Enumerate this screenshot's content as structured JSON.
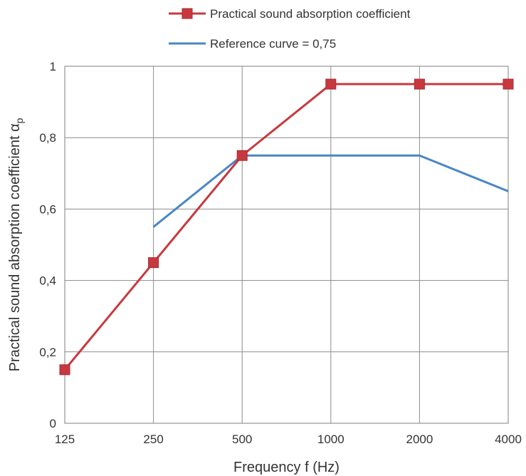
{
  "chart_data": {
    "type": "line",
    "categories": [
      "125",
      "250",
      "500",
      "1000",
      "2000",
      "4000"
    ],
    "y_tick_labels": [
      "0",
      "0,2",
      "0,4",
      "0,6",
      "0,8",
      "1"
    ],
    "y_ticks": [
      0,
      0.2,
      0.4,
      0.6,
      0.8,
      1
    ],
    "ylim": [
      0,
      1
    ],
    "grid": true,
    "legend_position": "top",
    "xlabel": "Frequency  f (Hz)",
    "ylabel": "Practical sound absorption coefficient  α",
    "ylabel_subscript": "p",
    "series": [
      {
        "name": "Practical sound absorption coefficient",
        "color": "#c8383f",
        "marker": "square",
        "values": [
          0.15,
          0.45,
          0.75,
          0.95,
          0.95,
          0.95
        ]
      },
      {
        "name": "Reference curve = 0,75",
        "color": "#4a86c5",
        "marker": "none",
        "values": [
          null,
          0.55,
          0.75,
          0.75,
          0.75,
          0.65
        ]
      }
    ]
  }
}
